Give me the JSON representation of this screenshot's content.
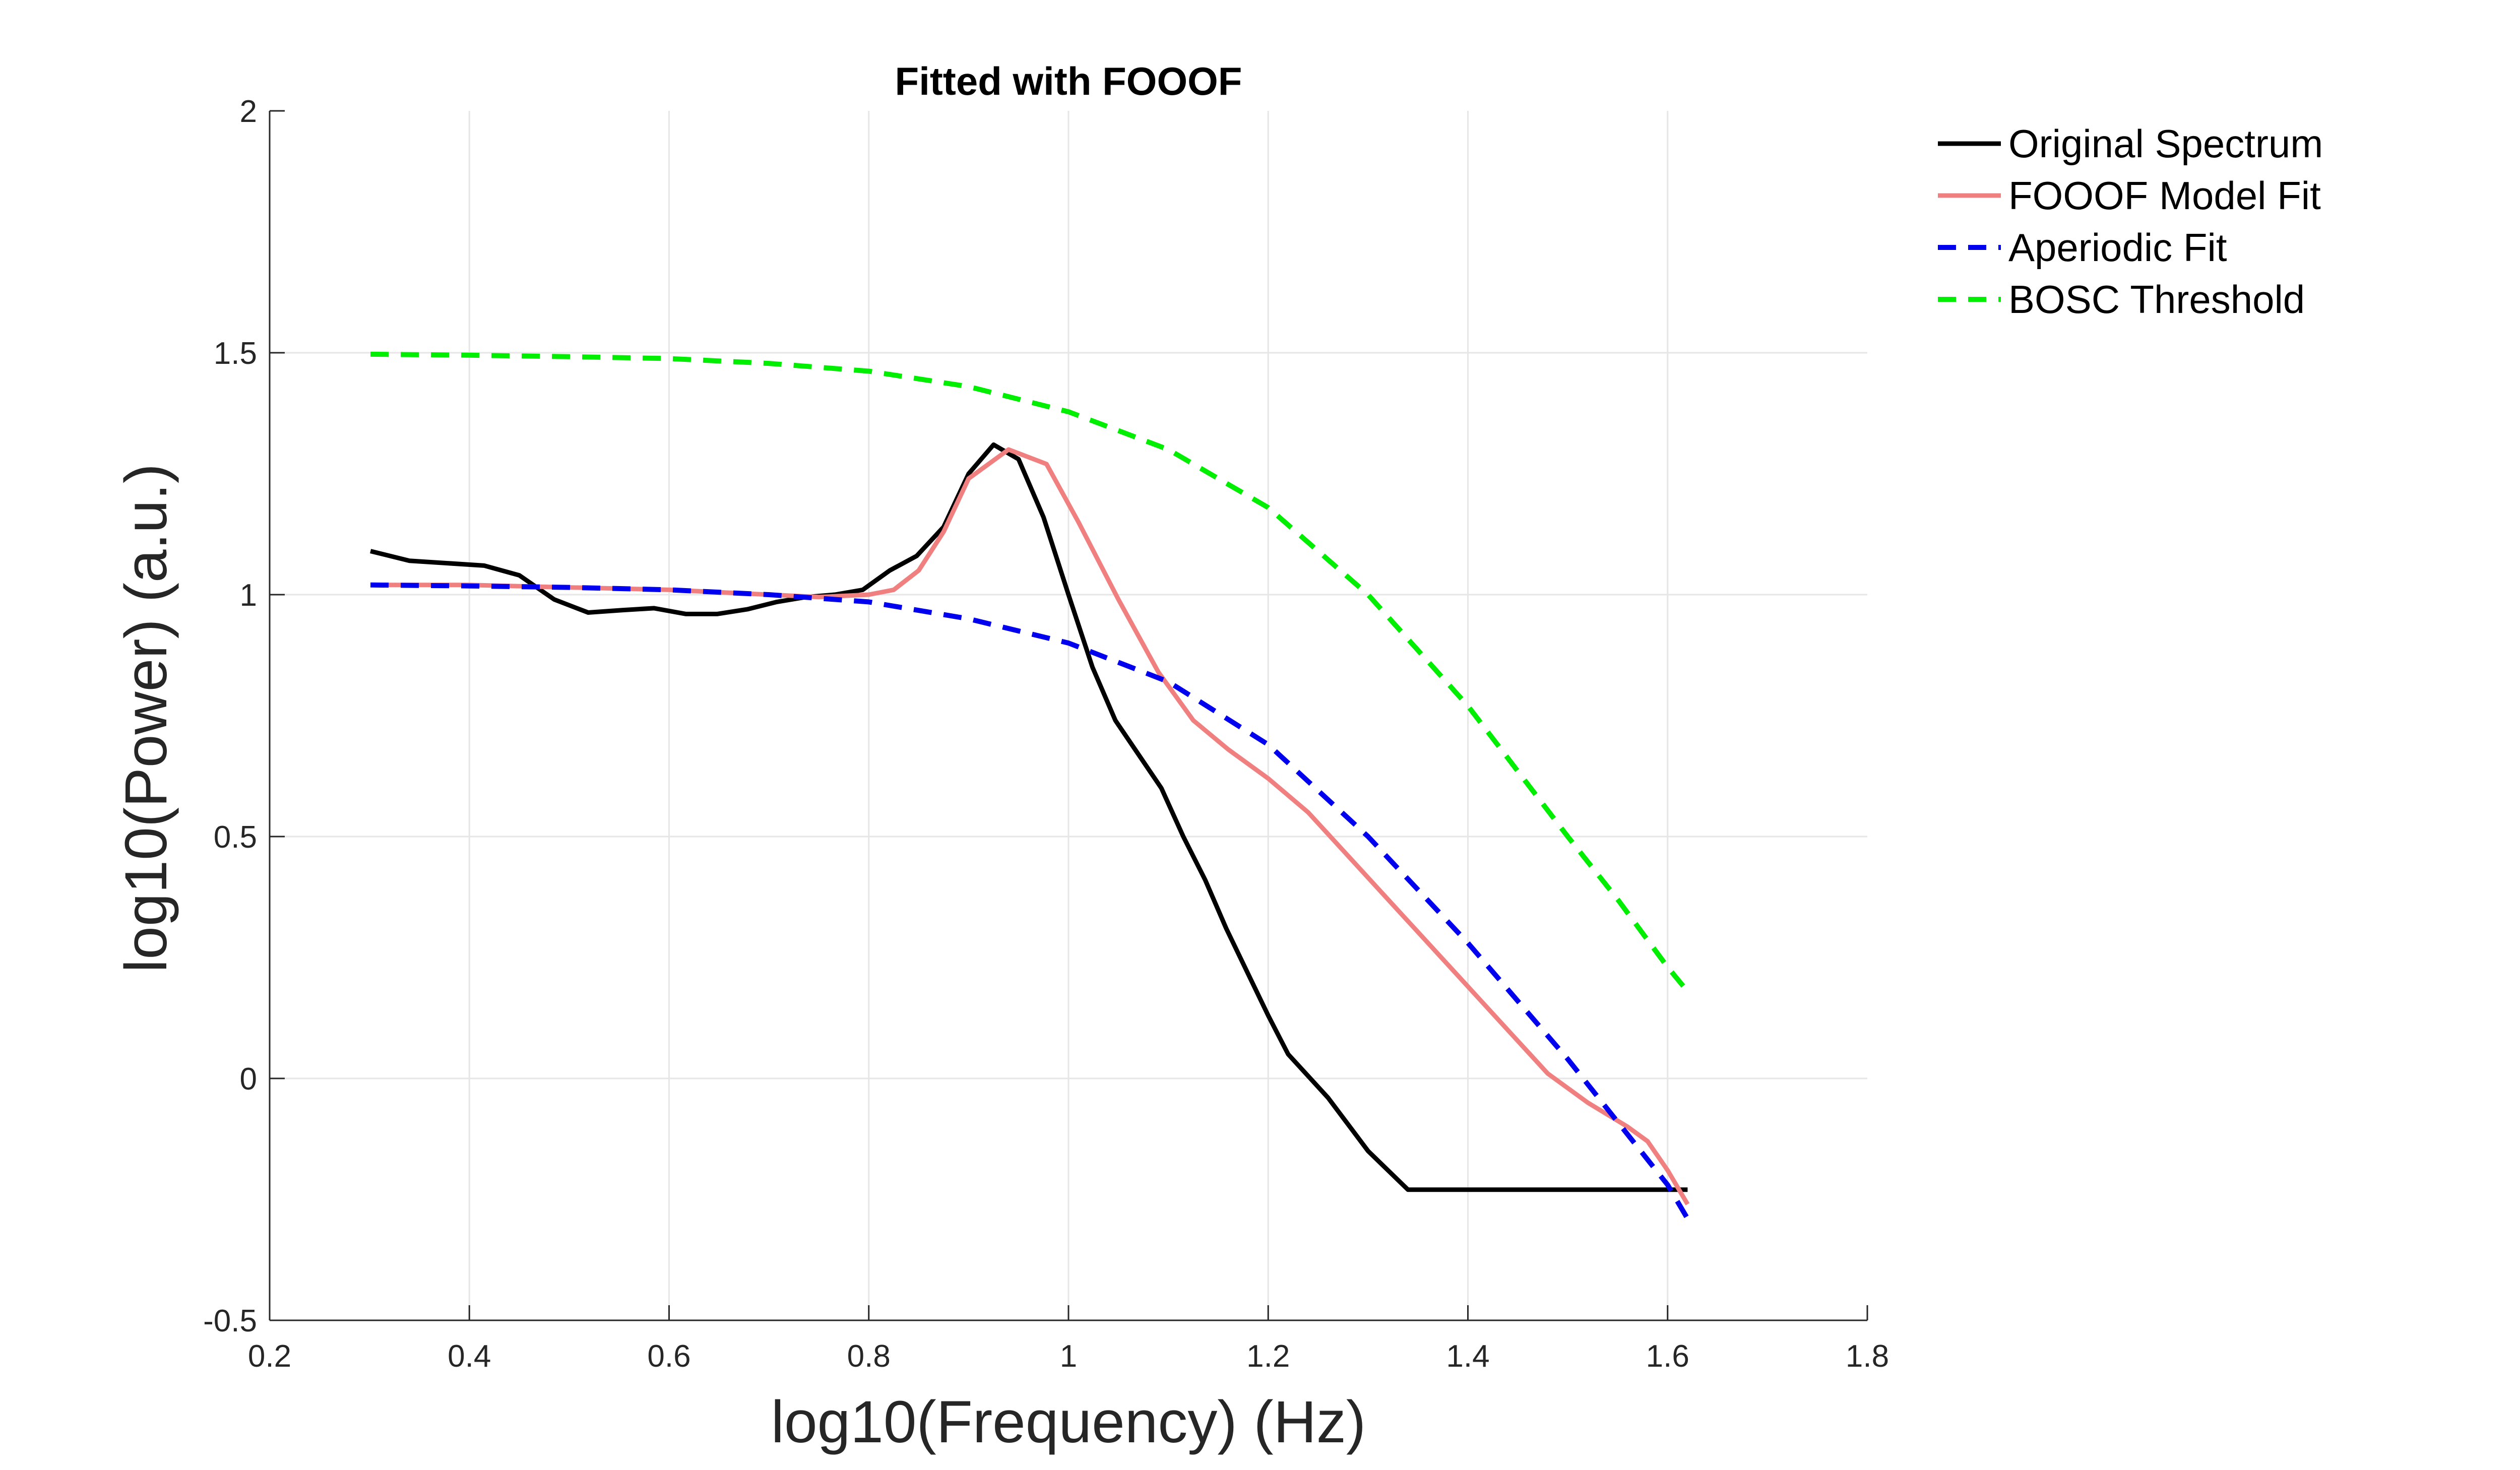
{
  "chart_data": {
    "type": "line",
    "title": "Fitted with FOOOF",
    "xlabel": "log10(Frequency) (Hz)",
    "ylabel": "log10(Power) (a.u.)",
    "xlim": [
      0.2,
      1.8
    ],
    "ylim": [
      -0.5,
      2
    ],
    "xticks": [
      0.2,
      0.4,
      0.6,
      0.8,
      1,
      1.2,
      1.4,
      1.6,
      1.8
    ],
    "xtick_labels": [
      "0.2",
      "0.4",
      "0.6",
      "0.8",
      "1",
      "1.2",
      "1.4",
      "1.6",
      "1.8"
    ],
    "yticks": [
      -0.5,
      0,
      0.5,
      1,
      1.5,
      2
    ],
    "ytick_labels": [
      "-0.5",
      "0",
      "0.5",
      "1",
      "1.5",
      "2"
    ],
    "grid": true,
    "legend_position": "outside-right-top",
    "series": [
      {
        "name": "Original Spectrum",
        "color": "#000000",
        "dash": "solid",
        "x": [
          0.301,
          0.34,
          0.378,
          0.415,
          0.45,
          0.485,
          0.519,
          0.553,
          0.585,
          0.617,
          0.648,
          0.679,
          0.708,
          0.737,
          0.766,
          0.794,
          0.821,
          0.848,
          0.875,
          0.9,
          0.925,
          0.95,
          0.975,
          1.0,
          1.024,
          1.047,
          1.07,
          1.093,
          1.115,
          1.137,
          1.158,
          1.179,
          1.2,
          1.22,
          1.26,
          1.3,
          1.34,
          1.38,
          1.42,
          1.46,
          1.5,
          1.54,
          1.58,
          1.62
        ],
        "y": [
          1.09,
          1.07,
          1.065,
          1.06,
          1.04,
          0.99,
          0.963,
          0.968,
          0.972,
          0.96,
          0.96,
          0.97,
          0.985,
          0.995,
          1.0,
          1.01,
          1.05,
          1.08,
          1.14,
          1.25,
          1.31,
          1.28,
          1.16,
          1.0,
          0.85,
          0.74,
          0.67,
          0.6,
          0.5,
          0.41,
          0.31,
          0.22,
          0.13,
          0.05,
          -0.04,
          -0.15,
          -0.23,
          -0.23,
          -0.23,
          -0.23,
          -0.23,
          -0.23,
          -0.23,
          -0.23
        ]
      },
      {
        "name": "FOOOF Model Fit",
        "color": "#f08080",
        "dash": "solid",
        "x": [
          0.301,
          0.4,
          0.5,
          0.6,
          0.7,
          0.75,
          0.8,
          0.825,
          0.85,
          0.875,
          0.9,
          0.94,
          0.978,
          1.01,
          1.05,
          1.09,
          1.125,
          1.16,
          1.2,
          1.24,
          1.28,
          1.32,
          1.36,
          1.4,
          1.44,
          1.48,
          1.52,
          1.56,
          1.58,
          1.6,
          1.62
        ],
        "y": [
          1.02,
          1.02,
          1.015,
          1.01,
          1.0,
          0.995,
          1.0,
          1.01,
          1.05,
          1.13,
          1.24,
          1.3,
          1.27,
          1.15,
          0.99,
          0.84,
          0.74,
          0.68,
          0.62,
          0.55,
          0.46,
          0.37,
          0.28,
          0.19,
          0.1,
          0.01,
          -0.05,
          -0.1,
          -0.13,
          -0.19,
          -0.26
        ]
      },
      {
        "name": "Aperiodic Fit",
        "color": "#0000ee",
        "dash": "dashed",
        "x": [
          0.301,
          0.4,
          0.5,
          0.6,
          0.7,
          0.8,
          0.9,
          1.0,
          1.1,
          1.2,
          1.3,
          1.4,
          1.5,
          1.55,
          1.6,
          1.62
        ],
        "y": [
          1.02,
          1.018,
          1.015,
          1.01,
          1.0,
          0.985,
          0.95,
          0.9,
          0.82,
          0.69,
          0.5,
          0.28,
          0.04,
          -0.09,
          -0.22,
          -0.29
        ]
      },
      {
        "name": "BOSC Threshold",
        "color": "#00ee00",
        "dash": "dashed",
        "x": [
          0.301,
          0.4,
          0.5,
          0.6,
          0.7,
          0.8,
          0.9,
          1.0,
          1.1,
          1.2,
          1.3,
          1.4,
          1.5,
          1.55,
          1.6,
          1.62
        ],
        "y": [
          1.497,
          1.495,
          1.492,
          1.488,
          1.478,
          1.462,
          1.43,
          1.378,
          1.3,
          1.18,
          1.0,
          0.77,
          0.5,
          0.37,
          0.23,
          0.18
        ]
      }
    ]
  }
}
